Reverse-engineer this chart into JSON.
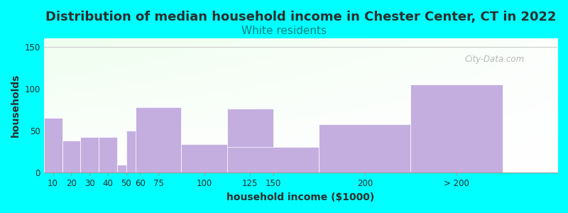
{
  "title": "Distribution of median household income in Chester Center, CT in 2022",
  "subtitle": "White residents",
  "xlabel": "household income ($1000)",
  "ylabel": "households",
  "background_color": "#00FFFF",
  "bar_color": "#C4AEE0",
  "bar_edge_color": "#FFFFFF",
  "title_color": "#2D2D2D",
  "subtitle_color": "#008080",
  "axis_label_color": "#2D2D2D",
  "tick_color": "#2D2D2D",
  "watermark": "City-Data.com",
  "watermark_color": "#AAAAAA",
  "categories": [
    "10",
    "20",
    "30",
    "40",
    "50",
    "60",
    "75",
    "100",
    "125",
    "150",
    "200",
    "> 200"
  ],
  "x_positions": [
    10,
    20,
    30,
    40,
    50,
    60,
    75,
    100,
    125,
    150,
    200,
    250
  ],
  "bar_widths": [
    10,
    10,
    10,
    10,
    10,
    15,
    25,
    25,
    25,
    50,
    50,
    50
  ],
  "values": [
    65,
    38,
    43,
    43,
    10,
    50,
    78,
    34,
    76,
    31,
    58,
    105
  ],
  "ylim": [
    0,
    160
  ],
  "xlim": [
    0,
    280
  ],
  "yticks": [
    0,
    50,
    100,
    150
  ],
  "title_fontsize": 13,
  "subtitle_fontsize": 11,
  "axis_label_fontsize": 10,
  "tick_fontsize": 8.5
}
